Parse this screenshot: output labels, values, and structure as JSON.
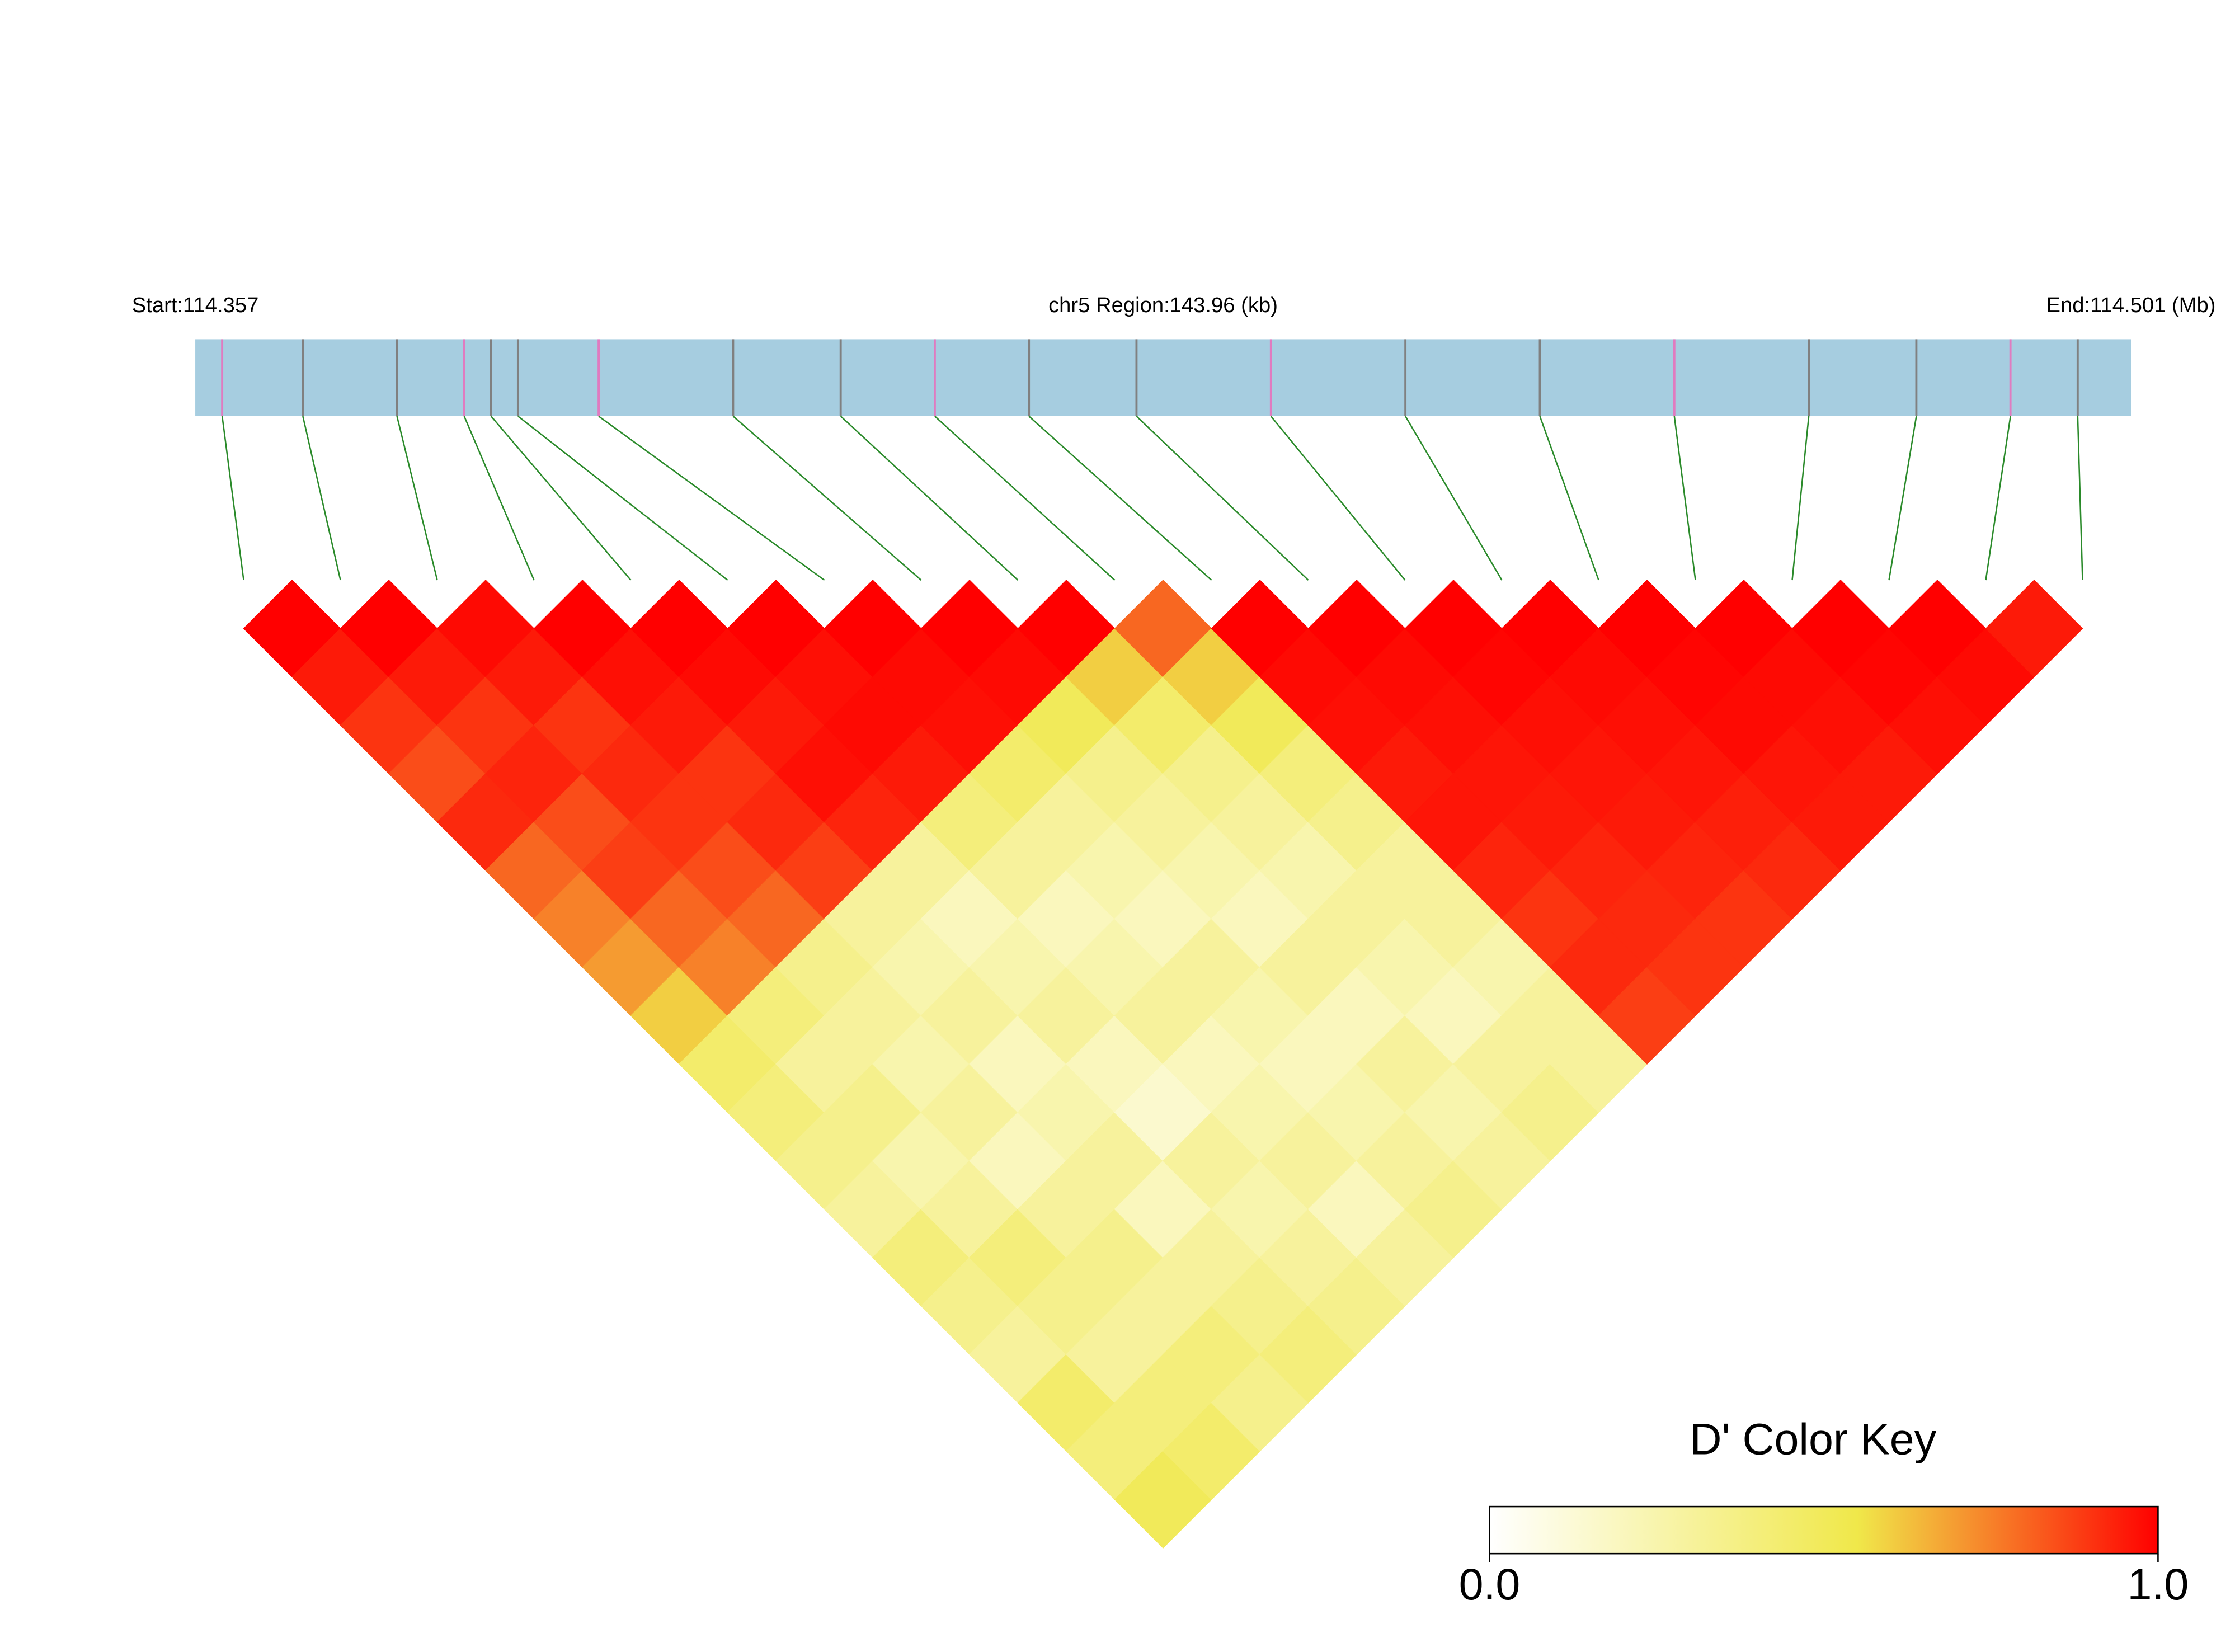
{
  "chart_data": {
    "type": "ld-heatmap",
    "start_label": "Start:114.357",
    "region_label": "chr5 Region:143.96 (kb)",
    "end_label": "End:114.501 (Mb)",
    "region_kb": 143.96,
    "snp_positions_kb": [
      2,
      8,
      15,
      20,
      22,
      24,
      30,
      40,
      48,
      55,
      62,
      70,
      80,
      90,
      100,
      110,
      120,
      128,
      135,
      140
    ],
    "dprime": [
      [
        1,
        0.95,
        0.9,
        0.85,
        0.92,
        0.8,
        0.75,
        0.7,
        0.6,
        0.45,
        0.4,
        0.35,
        0.3,
        0.4,
        0.35,
        0.3,
        0.45,
        0.4,
        0.5
      ],
      [
        1,
        0.95,
        0.9,
        0.93,
        0.85,
        0.88,
        0.8,
        0.75,
        0.4,
        0.3,
        0.35,
        0.25,
        0.3,
        0.4,
        0.35,
        0.3,
        0.4,
        0.45
      ],
      [
        0.98,
        0.95,
        0.9,
        0.92,
        0.9,
        0.85,
        0.8,
        0.35,
        0.3,
        0.25,
        0.3,
        0.2,
        0.3,
        0.35,
        0.3,
        0.4,
        0.35
      ],
      [
        1,
        0.97,
        0.95,
        0.9,
        0.92,
        0.88,
        0.3,
        0.25,
        0.3,
        0.2,
        0.25,
        0.3,
        0.2,
        0.3,
        0.35,
        0.4
      ],
      [
        1,
        0.98,
        0.95,
        0.97,
        0.93,
        0.3,
        0.2,
        0.25,
        0.3,
        0.2,
        0.15,
        0.3,
        0.25,
        0.3,
        0.35
      ],
      [
        1,
        0.97,
        0.98,
        0.95,
        0.4,
        0.3,
        0.2,
        0.25,
        0.3,
        0.2,
        0.25,
        0.3,
        0.2,
        0.3
      ],
      [
        1,
        0.98,
        0.97,
        0.45,
        0.3,
        0.25,
        0.2,
        0.3,
        0.25,
        0.2,
        0.25,
        0.3,
        0.35
      ],
      [
        1,
        0.98,
        0.5,
        0.35,
        0.3,
        0.25,
        0.2,
        0.3,
        0.2,
        0.3,
        0.25,
        0.3
      ],
      [
        1,
        0.6,
        0.45,
        0.35,
        0.3,
        0.25,
        0.3,
        0.25,
        0.2,
        0.3,
        0.35
      ],
      [
        0.8,
        0.6,
        0.5,
        0.4,
        0.35,
        0.3,
        0.3,
        0.25,
        0.3,
        0.3
      ],
      [
        1,
        0.98,
        0.97,
        0.95,
        0.96,
        0.93,
        0.9,
        0.92,
        0.88
      ],
      [
        1,
        0.98,
        0.97,
        0.96,
        0.95,
        0.93,
        0.92,
        0.9
      ],
      [
        1,
        0.99,
        0.97,
        0.96,
        0.95,
        0.93,
        0.9
      ],
      [
        1,
        0.98,
        0.97,
        0.96,
        0.94,
        0.92
      ],
      [
        1,
        0.99,
        0.98,
        0.96,
        0.95
      ],
      [
        1,
        0.98,
        0.97,
        0.95
      ],
      [
        1,
        0.99,
        0.97
      ],
      [
        1,
        0.98
      ],
      [
        0.95
      ]
    ],
    "colormap": {
      "stops": [
        0,
        0.55,
        1
      ],
      "colors": [
        "#ffffff",
        "#f0e84a",
        "#ff0000"
      ]
    },
    "key_title": "D' Color Key",
    "keylim": [
      0,
      1
    ],
    "key_ticks": [
      {
        "value": 0,
        "label": "0.0"
      },
      {
        "value": 1,
        "label": "1.0"
      }
    ]
  }
}
